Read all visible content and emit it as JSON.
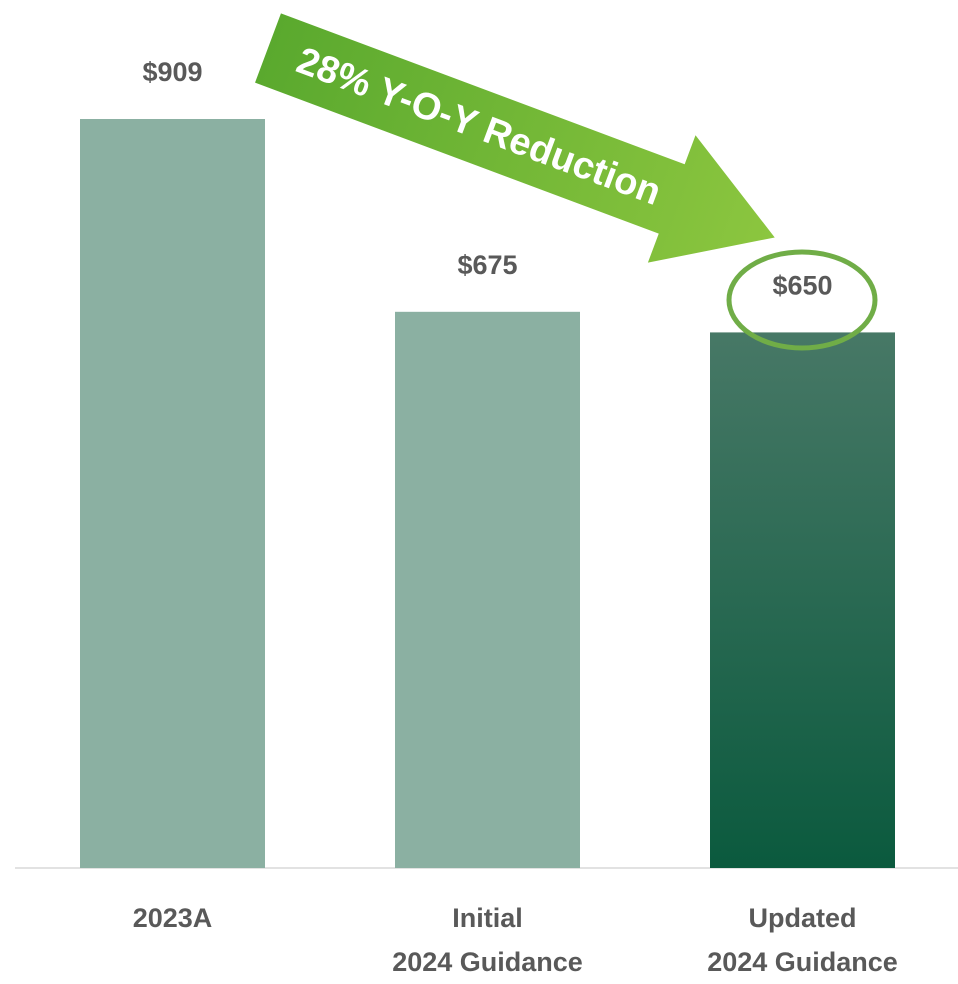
{
  "chart_data": {
    "type": "bar",
    "categories": [
      "2023A",
      "Initial\n2024 Guidance",
      "Updated\n2024 Guidance"
    ],
    "values": [
      909,
      675,
      650
    ],
    "value_labels": [
      "$909",
      "$675",
      "$650"
    ],
    "colors": [
      "#8BB0A2",
      "#8BB0A2",
      [
        "#477866",
        "#0B5A3E"
      ]
    ],
    "annotation": "28% Y-O-Y Reduction"
  }
}
